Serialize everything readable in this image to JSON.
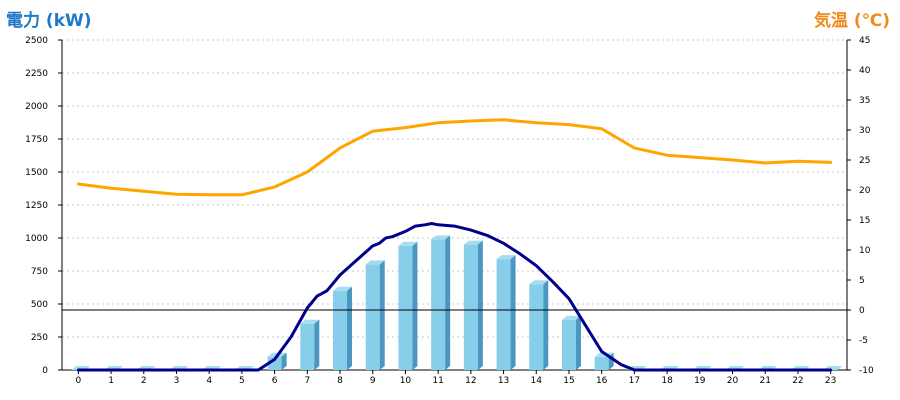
{
  "chart_data": {
    "type": "bar",
    "left_axis_title": "電力 (kW)",
    "right_axis_title": "気温 (℃)",
    "categories": [
      "0",
      "1",
      "2",
      "3",
      "4",
      "5",
      "6",
      "7",
      "8",
      "9",
      "10",
      "11",
      "12",
      "13",
      "14",
      "15",
      "16",
      "17",
      "18",
      "19",
      "20",
      "21",
      "22",
      "23"
    ],
    "y_left": {
      "range": [
        0,
        2500
      ],
      "ticks": [
        "0",
        "250",
        "500",
        "750",
        "1000",
        "1250",
        "1500",
        "1750",
        "2000",
        "2250",
        "2500"
      ]
    },
    "y_right": {
      "range": [
        -10,
        45
      ],
      "ticks": [
        "-10",
        "-5",
        "0",
        "5",
        "10",
        "15",
        "20",
        "25",
        "30",
        "35",
        "40",
        "45"
      ]
    },
    "grid": true,
    "series": [
      {
        "kind": "bar",
        "axis": "left",
        "color": "#87ceeb",
        "values": [
          0,
          0,
          0,
          0,
          0,
          0,
          100,
          350,
          600,
          800,
          940,
          990,
          950,
          840,
          650,
          380,
          100,
          0,
          0,
          0,
          0,
          0,
          0,
          0
        ]
      },
      {
        "kind": "line",
        "axis": "left",
        "color": "#00008b",
        "x": [
          0,
          1,
          2,
          3,
          4,
          5,
          5.5,
          6,
          6.5,
          7,
          7.3,
          7.6,
          8,
          8.5,
          9,
          9.2,
          9.4,
          9.6,
          10,
          10.3,
          10.6,
          10.8,
          11,
          11.5,
          12,
          12.5,
          13,
          13.5,
          14,
          14.5,
          15,
          15.5,
          16,
          16.3,
          16.6,
          17,
          18,
          19,
          20,
          21,
          22,
          23
        ],
        "y": [
          0,
          0,
          0,
          0,
          0,
          0,
          0,
          80,
          250,
          470,
          560,
          600,
          720,
          830,
          940,
          960,
          1000,
          1010,
          1050,
          1090,
          1100,
          1110,
          1100,
          1090,
          1060,
          1020,
          960,
          880,
          790,
          670,
          540,
          340,
          140,
          90,
          40,
          0,
          0,
          0,
          0,
          0,
          0,
          0
        ]
      },
      {
        "kind": "line",
        "axis": "right",
        "color": "#ffa500",
        "x": [
          0,
          1,
          2,
          3,
          4,
          5,
          6,
          7,
          8,
          9,
          10,
          11,
          12,
          13,
          14,
          15,
          16,
          17,
          18,
          19,
          20,
          21,
          22,
          23
        ],
        "y": [
          21,
          20.3,
          19.8,
          19.3,
          19.2,
          19.2,
          20.5,
          23,
          27,
          29.8,
          30.4,
          31.2,
          31.5,
          31.7,
          31.2,
          30.9,
          30.2,
          27,
          25.8,
          25.4,
          25,
          24.5,
          24.8,
          24.6
        ]
      }
    ],
    "reference_line": {
      "axis": "right",
      "value": 0,
      "color": "#000000"
    }
  }
}
